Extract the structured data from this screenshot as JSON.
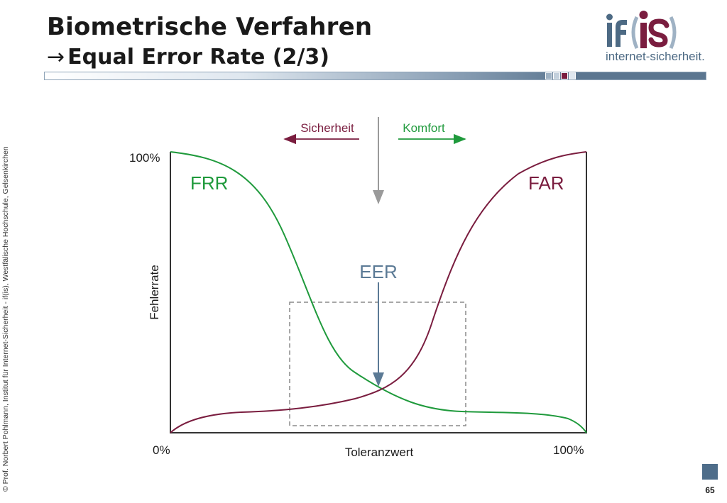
{
  "header": {
    "title": "Biometrische Verfahren",
    "subtitle_arrow": "→",
    "subtitle": "Equal Error Rate (2/3)"
  },
  "logo": {
    "mark": "if(is)",
    "text": "internet-sicherheit."
  },
  "sidebar_text": "© Prof. Norbert Pohlmann, Institut für Internet-Sicherheit - if(is), Westfälische Hochschule, Gelsenkirchen",
  "page_number": "65",
  "diagram": {
    "label_security": "Sicherheit",
    "label_comfort": "Komfort",
    "label_frr": "FRR",
    "label_far": "FAR",
    "label_eer": "EER",
    "y_top": "100%",
    "x_start": "0%",
    "x_end": "100%",
    "xlabel": "Toleranzwert",
    "ylabel": "Fehlerrate"
  },
  "colors": {
    "green": "#1f9a3c",
    "maroon": "#7a1d3f",
    "eer_blue": "#5b7a95",
    "title": "#1a1a1a",
    "logo_blue": "#4d6a84"
  },
  "icons": [
    "right-arrow-icon",
    "left-arrow-icon",
    "down-arrow-icon"
  ]
}
